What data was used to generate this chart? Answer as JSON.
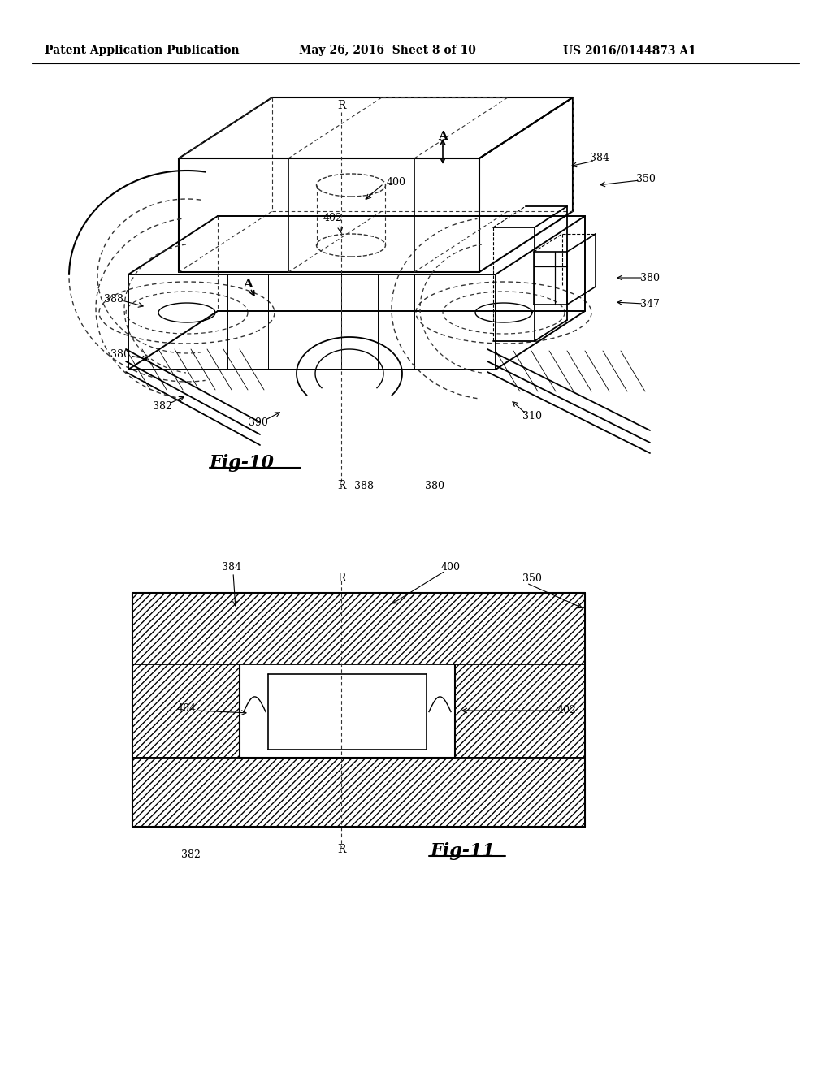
{
  "header_left": "Patent Application Publication",
  "header_mid": "May 26, 2016  Sheet 8 of 10",
  "header_right": "US 2016/0144873 A1",
  "fig10_label": "Fig-10",
  "fig11_label": "Fig-11",
  "bg_color": "#ffffff",
  "line_color": "#000000",
  "text_color": "#000000",
  "header_fontsize": 10,
  "ref_fontsize": 9,
  "fig_label_fontsize": 15
}
